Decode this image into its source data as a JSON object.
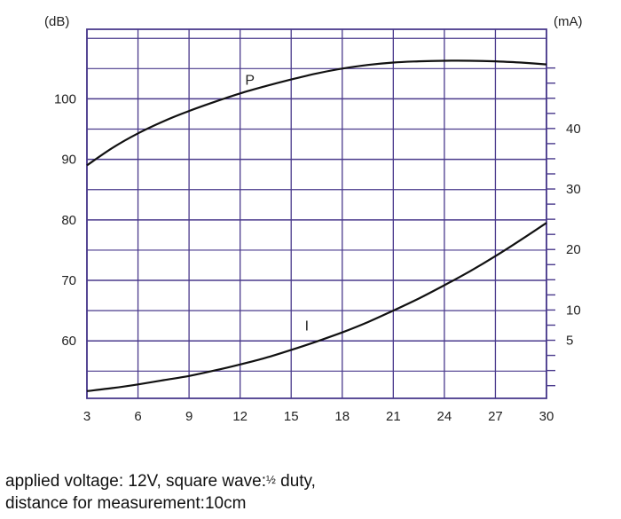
{
  "chart_data": {
    "type": "line",
    "x_ticks": [
      3,
      6,
      9,
      12,
      15,
      18,
      21,
      24,
      27,
      30
    ],
    "xlim": [
      3,
      30
    ],
    "y_left": {
      "unit": "(dB)",
      "ticks": [
        60,
        70,
        80,
        90,
        100
      ],
      "range": [
        50.5,
        111.5
      ]
    },
    "y_right": {
      "unit": "(mA)",
      "ticks": [
        5,
        10,
        20,
        30,
        40
      ],
      "range": [
        -4.6,
        56.4
      ]
    },
    "grid": true,
    "series": [
      {
        "name": "P",
        "axis": "left",
        "color": "#111111",
        "x": [
          3,
          4.5,
          6,
          7.5,
          9,
          10.5,
          12,
          13.5,
          15,
          16.5,
          18,
          19.5,
          21,
          22.5,
          24,
          25.5,
          27,
          28.5,
          30
        ],
        "y": [
          89,
          91.9,
          94.3,
          96.3,
          98,
          99.5,
          100.9,
          102.1,
          103.2,
          104.2,
          105,
          105.6,
          106,
          106.2,
          106.3,
          106.3,
          106.2,
          106,
          105.7
        ]
      },
      {
        "name": "I",
        "axis": "right",
        "color": "#111111",
        "x": [
          3,
          4.5,
          6,
          7.5,
          9,
          10.5,
          12,
          13.5,
          15,
          16.5,
          18,
          19.5,
          21,
          22.5,
          24,
          25.5,
          27,
          28.5,
          30
        ],
        "y": [
          -3.4,
          -2.9,
          -2.3,
          -1.6,
          -0.9,
          0,
          1,
          2.1,
          3.4,
          4.8,
          6.3,
          8,
          9.9,
          11.9,
          14.1,
          16.4,
          18.9,
          21.6,
          24.4
        ]
      }
    ]
  },
  "footnote": {
    "line1_prefix": "applied voltage: 12V, square wave:",
    "fraction": "½",
    "line1_suffix": " duty,",
    "line2": "distance for measurement:10cm"
  }
}
